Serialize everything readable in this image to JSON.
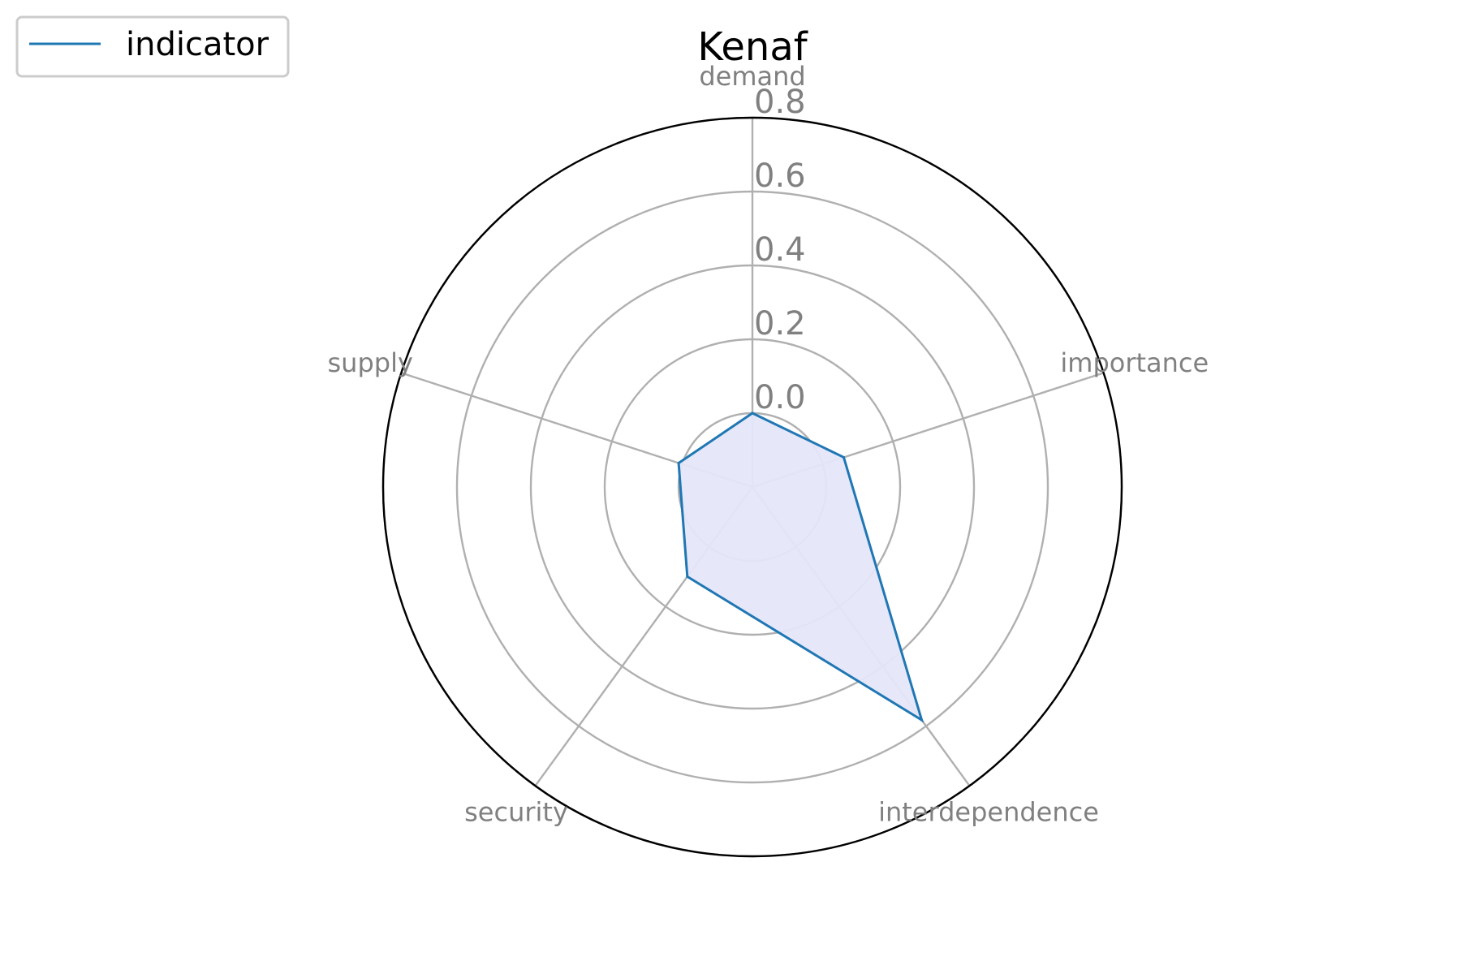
{
  "chart_data": {
    "type": "radar",
    "title": "Kenaf",
    "axes": [
      "demand",
      "importance",
      "interdependence",
      "security",
      "supply"
    ],
    "series": [
      {
        "name": "indicator",
        "values": [
          0.0,
          0.06,
          0.58,
          0.1,
          0.01
        ]
      }
    ],
    "rlim": [
      -0.2,
      0.8
    ],
    "rticks": [
      0.0,
      0.2,
      0.4,
      0.6,
      0.8
    ],
    "rtick_labels": [
      "0.0",
      "0.2",
      "0.4",
      "0.6",
      "0.8"
    ],
    "grid": true,
    "legend": "top-left",
    "colors": {
      "line": "#1f77b4",
      "fill": "#e6e6fa",
      "grid": "#b0b0b0",
      "spine": "#000000",
      "label": "#808080"
    }
  }
}
